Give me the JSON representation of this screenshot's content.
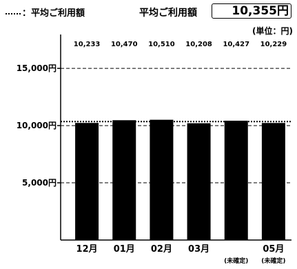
{
  "header": {
    "legend_text": "：平均ご利用額",
    "avg_label": "平均ご利用額",
    "avg_value": "10,355円",
    "unit": "(単位：円)"
  },
  "chart_data": {
    "type": "bar",
    "categories": [
      "12月",
      "01月",
      "02月",
      "03月",
      "",
      "05月"
    ],
    "category_notes": [
      "",
      "",
      "",
      "",
      "(未確定)",
      "(未確定)"
    ],
    "values": [
      10233,
      10470,
      10510,
      10208,
      10427,
      10229
    ],
    "value_labels": [
      "10,233",
      "10,470",
      "10,510",
      "10,208",
      "10,427",
      "10,229"
    ],
    "average": 10355,
    "yticks": [
      15000,
      10000,
      5000
    ],
    "ytick_labels": [
      "15,000円",
      "10,000円",
      "5,000円"
    ],
    "ylim": [
      0,
      17600
    ],
    "grid": "dashed horizontal",
    "colors": {
      "bar": "#000000",
      "grid": "#000000"
    }
  }
}
